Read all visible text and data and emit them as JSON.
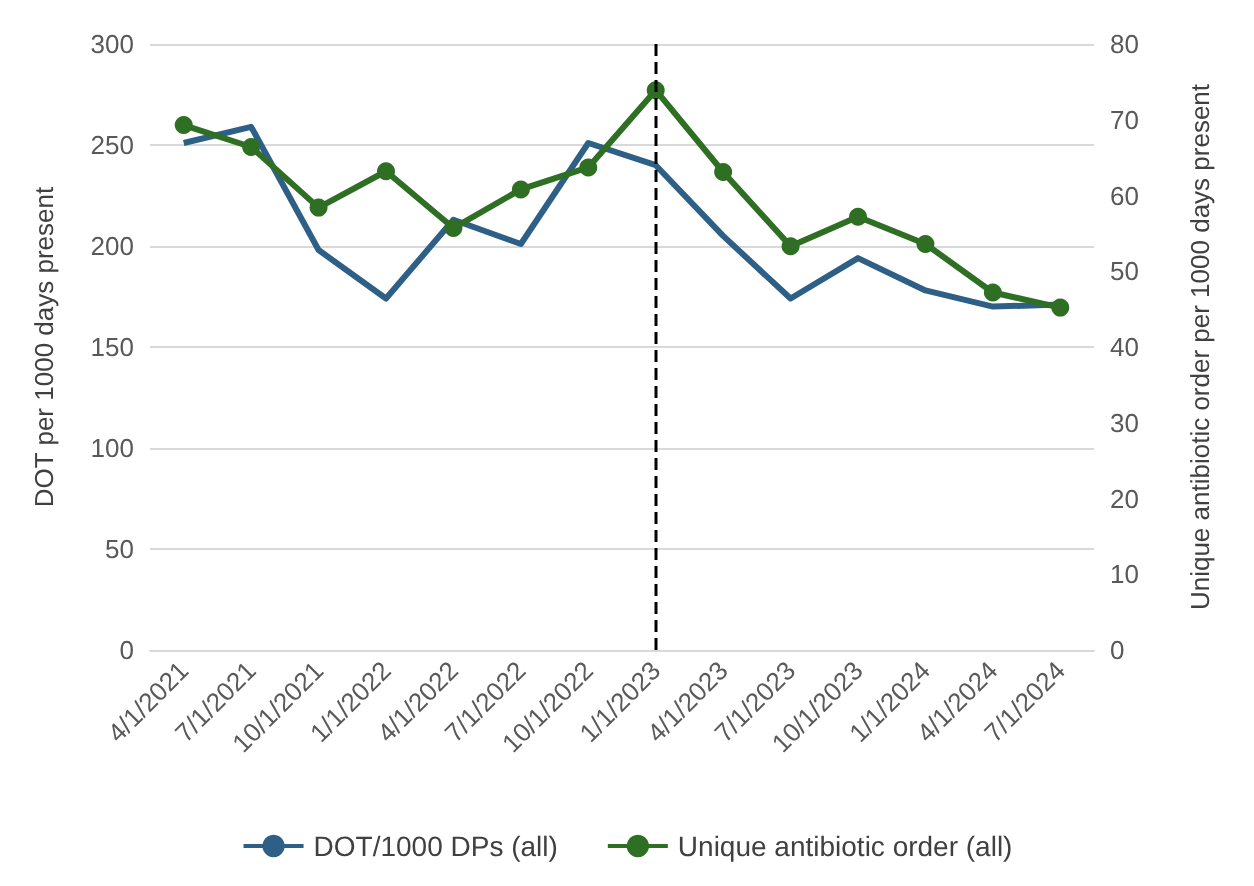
{
  "chart_data": {
    "type": "line",
    "ylabel": "DOT per 1000 days present",
    "y2label": "Unique antibiotic order per 1000 days present",
    "categories": [
      "4/1/2021",
      "7/1/2021",
      "10/1/2021",
      "1/1/2022",
      "4/1/2022",
      "7/1/2022",
      "10/1/2022",
      "1/1/2023",
      "4/1/2023",
      "7/1/2023",
      "10/1/2023",
      "1/1/2024",
      "4/1/2024",
      "7/1/2024"
    ],
    "series": [
      {
        "name": "DOT/1000 DPs (all)",
        "color": "#2e5f86",
        "marker": "none",
        "values": [
          251,
          259,
          198,
          174,
          213,
          201,
          251,
          240,
          205,
          174,
          194,
          178,
          170,
          171
        ]
      },
      {
        "name": "Unique antibiotic order (all)",
        "color": "#2f6f24",
        "axis": "y2",
        "marker": "circle",
        "values": [
          69.3,
          66.4,
          58.4,
          63.2,
          55.7,
          60.8,
          63.7,
          73.9,
          63.1,
          53.3,
          57.2,
          53.6,
          47.2,
          45.2
        ]
      }
    ],
    "ylim": [
      0,
      300
    ],
    "yticks": [
      0,
      50,
      100,
      150,
      200,
      250,
      300
    ],
    "y2lim": [
      0,
      80
    ],
    "y2ticks": [
      0,
      10,
      20,
      30,
      40,
      50,
      60,
      70,
      80
    ],
    "grid": "y",
    "legend": "bottom",
    "ref_lines": [
      {
        "axis": "x",
        "value": "1/1/2023",
        "color": "#000000",
        "line_style": "dashed"
      }
    ]
  }
}
